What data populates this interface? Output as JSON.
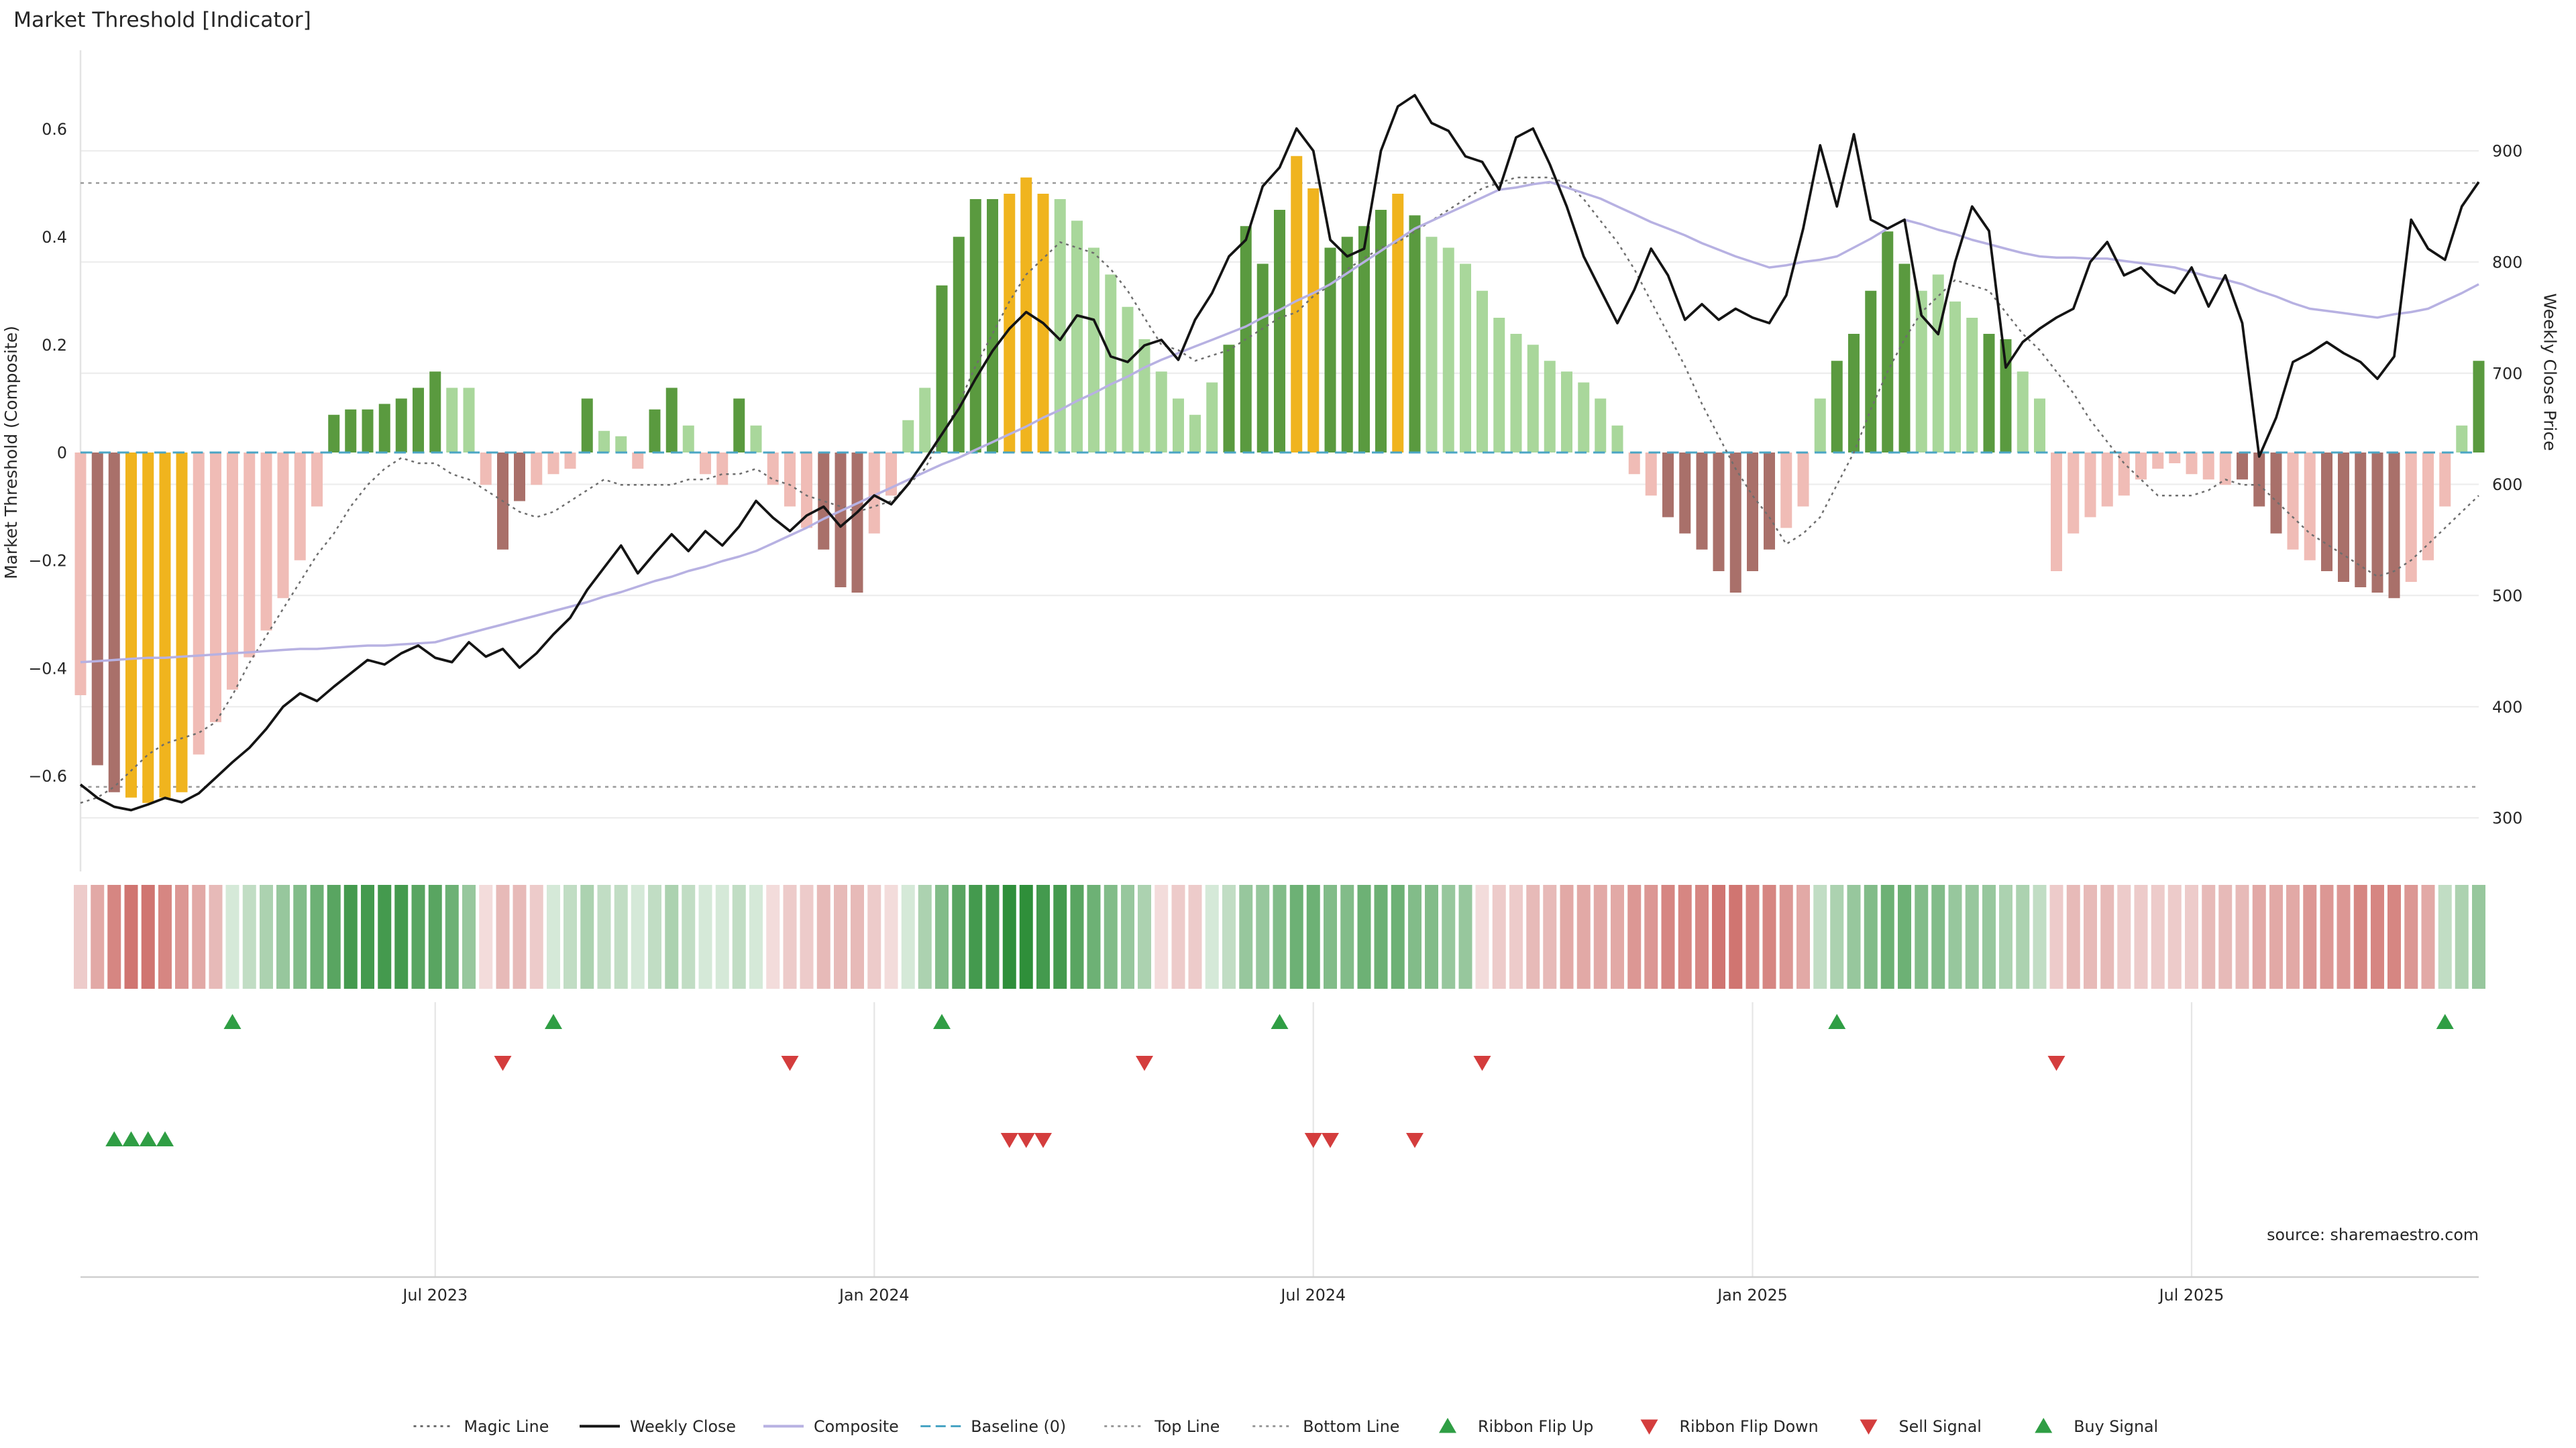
{
  "title": "Market Threshold [Indicator]",
  "source": "source: sharemaestro.com",
  "colors": {
    "dark_green": "#5a9a3f",
    "light_green": "#a9d79b",
    "yellow": "#f0b41e",
    "light_red": "#f0bcb6",
    "dark_red": "#a9706a",
    "weekly_close": "#141414",
    "composite_line": "#b7b1e2",
    "magic_line": "#6e6e6e",
    "baseline": "#4aa5c4",
    "top_bottom_line": "#9a9a9a",
    "signal_green": "#2f9e44",
    "signal_red": "#d43d3d",
    "ribbon_green": "#2f8f3a",
    "ribbon_red": "#c4524d"
  },
  "legend": [
    {
      "label": "Magic Line",
      "marker": "dotted-line",
      "color": "#6e6e6e"
    },
    {
      "label": "Weekly Close",
      "marker": "solid-line",
      "color": "#141414"
    },
    {
      "label": "Composite",
      "marker": "solid-line",
      "color": "#b7b1e2"
    },
    {
      "label": "Baseline (0)",
      "marker": "dashed-line",
      "color": "#4aa5c4"
    },
    {
      "label": "Top Line",
      "marker": "dotted-line",
      "color": "#9a9a9a"
    },
    {
      "label": "Bottom Line",
      "marker": "dotted-line",
      "color": "#9a9a9a"
    },
    {
      "label": "Ribbon Flip Up",
      "marker": "triangle-up",
      "color": "#2f9e44"
    },
    {
      "label": "Ribbon Flip Down",
      "marker": "triangle-down",
      "color": "#d43d3d"
    },
    {
      "label": "Sell Signal",
      "marker": "triangle-down",
      "color": "#d43d3d"
    },
    {
      "label": "Buy Signal",
      "marker": "triangle-up",
      "color": "#2f9e44"
    }
  ],
  "chart_data": {
    "type": "mixed",
    "description": "Weekly market-threshold composite histogram with weekly close price, composite and magic lines, signal ribbon and buy/sell markers",
    "x_axis": {
      "unit": "week",
      "tick_labels": [
        "Jul 2023",
        "Jan 2024",
        "Jul 2024",
        "Jan 2025",
        "Jul 2025"
      ],
      "tick_week_indices": [
        21,
        47,
        73,
        99,
        125
      ]
    },
    "left_axis": {
      "label": "Market Threshold (Composite)",
      "ticks": [
        0.6,
        0.4,
        0.2,
        0,
        -0.2,
        -0.4,
        -0.6
      ],
      "tick_labels": [
        "0.6",
        "0.4",
        "0.2",
        "0",
        "−0.2",
        "−0.4",
        "−0.6"
      ]
    },
    "right_axis": {
      "label": "Weekly Close Price",
      "ticks": [
        900,
        800,
        700,
        600,
        500,
        400,
        300
      ]
    },
    "reference_lines": {
      "baseline": 0,
      "top_line": 0.5,
      "bottom_line": -0.62
    },
    "bars": {
      "name": "Market Threshold (Composite) histogram",
      "values": [
        -0.45,
        -0.58,
        -0.63,
        -0.64,
        -0.65,
        -0.64,
        -0.63,
        -0.56,
        -0.5,
        -0.44,
        -0.38,
        -0.33,
        -0.27,
        -0.2,
        -0.1,
        0.07,
        0.08,
        0.08,
        0.09,
        0.1,
        0.12,
        0.15,
        0.12,
        0.12,
        -0.06,
        -0.18,
        -0.09,
        -0.06,
        -0.04,
        -0.03,
        0.1,
        0.04,
        0.03,
        -0.03,
        0.08,
        0.12,
        0.05,
        -0.04,
        -0.06,
        0.1,
        0.05,
        -0.06,
        -0.1,
        -0.14,
        -0.18,
        -0.25,
        -0.26,
        -0.15,
        -0.08,
        0.06,
        0.12,
        0.31,
        0.4,
        0.47,
        0.47,
        0.48,
        0.51,
        0.48,
        0.47,
        0.43,
        0.38,
        0.33,
        0.27,
        0.21,
        0.15,
        0.1,
        0.07,
        0.13,
        0.2,
        0.42,
        0.35,
        0.45,
        0.55,
        0.49,
        0.38,
        0.4,
        0.42,
        0.45,
        0.48,
        0.44,
        0.4,
        0.38,
        0.35,
        0.3,
        0.25,
        0.22,
        0.2,
        0.17,
        0.15,
        0.13,
        0.1,
        0.05,
        -0.04,
        -0.08,
        -0.12,
        -0.15,
        -0.18,
        -0.22,
        -0.26,
        -0.22,
        -0.18,
        -0.14,
        -0.1,
        0.1,
        0.17,
        0.22,
        0.3,
        0.41,
        0.35,
        0.3,
        0.33,
        0.28,
        0.25,
        0.22,
        0.21,
        0.15,
        0.1,
        -0.22,
        -0.15,
        -0.12,
        -0.1,
        -0.08,
        -0.05,
        -0.03,
        -0.02,
        -0.04,
        -0.05,
        -0.06,
        -0.05,
        -0.1,
        -0.15,
        -0.18,
        -0.2,
        -0.22,
        -0.24,
        -0.25,
        -0.26,
        -0.27,
        -0.24,
        -0.2,
        -0.1,
        0.05,
        0.17
      ],
      "styles": [
        "lr",
        "dr",
        "dr",
        "y",
        "y",
        "y",
        "y",
        "lr",
        "lr",
        "lr",
        "lr",
        "lr",
        "lr",
        "lr",
        "lr",
        "dg",
        "dg",
        "dg",
        "dg",
        "dg",
        "dg",
        "dg",
        "lg",
        "lg",
        "lr",
        "dr",
        "dr",
        "lr",
        "lr",
        "lr",
        "dg",
        "lg",
        "lg",
        "lr",
        "dg",
        "dg",
        "lg",
        "lr",
        "lr",
        "dg",
        "lg",
        "lr",
        "lr",
        "lr",
        "dr",
        "dr",
        "dr",
        "lr",
        "lr",
        "lg",
        "lg",
        "dg",
        "dg",
        "dg",
        "dg",
        "y",
        "y",
        "y",
        "lg",
        "lg",
        "lg",
        "lg",
        "lg",
        "lg",
        "lg",
        "lg",
        "lg",
        "lg",
        "dg",
        "dg",
        "dg",
        "dg",
        "y",
        "y",
        "dg",
        "dg",
        "dg",
        "dg",
        "y",
        "dg",
        "lg",
        "lg",
        "lg",
        "lg",
        "lg",
        "lg",
        "lg",
        "lg",
        "lg",
        "lg",
        "lg",
        "lg",
        "lr",
        "lr",
        "dr",
        "dr",
        "dr",
        "dr",
        "dr",
        "dr",
        "dr",
        "lr",
        "lr",
        "lg",
        "dg",
        "dg",
        "dg",
        "dg",
        "dg",
        "lg",
        "lg",
        "lg",
        "lg",
        "dg",
        "dg",
        "lg",
        "lg",
        "lr",
        "lr",
        "lr",
        "lr",
        "lr",
        "lr",
        "lr",
        "lr",
        "lr",
        "lr",
        "lr",
        "dr",
        "dr",
        "dr",
        "lr",
        "lr",
        "dr",
        "dr",
        "dr",
        "dr",
        "dr",
        "lr",
        "lr",
        "lr",
        "lg",
        "dg"
      ],
      "style_legend": {
        "dg": "dark green",
        "lg": "light green",
        "y": "yellow highlight",
        "lr": "light red",
        "dr": "dark red"
      }
    },
    "lines": {
      "weekly_close": [
        330,
        318,
        310,
        307,
        312,
        318,
        314,
        322,
        336,
        350,
        363,
        380,
        400,
        412,
        405,
        418,
        430,
        442,
        438,
        448,
        455,
        444,
        440,
        458,
        445,
        452,
        435,
        448,
        465,
        480,
        505,
        525,
        545,
        520,
        538,
        555,
        540,
        558,
        545,
        562,
        585,
        570,
        558,
        572,
        580,
        562,
        575,
        590,
        582,
        600,
        622,
        645,
        668,
        695,
        720,
        740,
        755,
        745,
        730,
        752,
        748,
        715,
        710,
        725,
        730,
        712,
        748,
        772,
        805,
        820,
        868,
        885,
        920,
        900,
        820,
        805,
        812,
        900,
        940,
        950,
        925,
        918,
        895,
        890,
        865,
        912,
        920,
        888,
        850,
        805,
        775,
        745,
        775,
        812,
        788,
        748,
        762,
        748,
        758,
        750,
        745,
        770,
        830,
        905,
        850,
        915,
        838,
        830,
        838,
        752,
        735,
        800,
        850,
        828,
        705,
        728,
        740,
        750,
        758,
        800,
        818,
        788,
        795,
        780,
        772,
        795,
        760,
        788,
        745,
        625,
        660,
        710,
        718,
        728,
        718,
        710,
        695,
        715,
        838,
        812,
        802,
        850,
        872
      ],
      "composite": [
        440,
        441,
        442,
        443,
        444,
        444,
        445,
        446,
        447,
        448,
        449,
        450,
        451,
        452,
        452,
        453,
        454,
        455,
        455,
        456,
        457,
        458,
        462,
        466,
        470,
        474,
        478,
        482,
        486,
        490,
        494,
        499,
        503,
        508,
        513,
        517,
        522,
        526,
        531,
        535,
        540,
        547,
        554,
        561,
        569,
        576,
        583,
        590,
        597,
        604,
        611,
        618,
        624,
        631,
        638,
        645,
        652,
        660,
        667,
        675,
        682,
        690,
        697,
        705,
        712,
        718,
        724,
        730,
        736,
        742,
        750,
        757,
        765,
        772,
        780,
        790,
        800,
        810,
        820,
        830,
        837,
        844,
        851,
        858,
        865,
        867,
        870,
        872,
        867,
        862,
        857,
        850,
        843,
        836,
        830,
        824,
        817,
        811,
        805,
        800,
        795,
        797,
        800,
        802,
        805,
        813,
        821,
        830,
        838,
        834,
        829,
        825,
        820,
        816,
        812,
        808,
        805,
        804,
        804,
        803,
        803,
        801,
        799,
        797,
        795,
        791,
        787,
        784,
        780,
        774,
        769,
        763,
        758,
        756,
        754,
        752,
        750,
        753,
        755,
        758,
        765,
        772,
        780
      ],
      "magic_line": [
        -0.65,
        -0.64,
        -0.62,
        -0.59,
        -0.56,
        -0.54,
        -0.53,
        -0.52,
        -0.5,
        -0.45,
        -0.39,
        -0.34,
        -0.29,
        -0.24,
        -0.19,
        -0.15,
        -0.1,
        -0.06,
        -0.03,
        -0.01,
        -0.02,
        -0.02,
        -0.04,
        -0.05,
        -0.07,
        -0.09,
        -0.11,
        -0.12,
        -0.11,
        -0.09,
        -0.07,
        -0.05,
        -0.06,
        -0.06,
        -0.06,
        -0.06,
        -0.05,
        -0.05,
        -0.04,
        -0.04,
        -0.03,
        -0.05,
        -0.06,
        -0.08,
        -0.09,
        -0.1,
        -0.11,
        -0.1,
        -0.09,
        -0.06,
        -0.03,
        0.03,
        0.09,
        0.16,
        0.22,
        0.28,
        0.33,
        0.36,
        0.39,
        0.38,
        0.37,
        0.34,
        0.3,
        0.25,
        0.2,
        0.19,
        0.17,
        0.18,
        0.19,
        0.21,
        0.23,
        0.25,
        0.26,
        0.29,
        0.31,
        0.34,
        0.36,
        0.38,
        0.39,
        0.41,
        0.43,
        0.45,
        0.47,
        0.49,
        0.5,
        0.51,
        0.51,
        0.51,
        0.5,
        0.47,
        0.43,
        0.39,
        0.34,
        0.28,
        0.22,
        0.16,
        0.09,
        0.03,
        -0.03,
        -0.08,
        -0.12,
        -0.17,
        -0.15,
        -0.12,
        -0.06,
        0.0,
        0.08,
        0.15,
        0.21,
        0.26,
        0.29,
        0.32,
        0.31,
        0.3,
        0.26,
        0.22,
        0.19,
        0.15,
        0.11,
        0.06,
        0.02,
        -0.02,
        -0.05,
        -0.08,
        -0.08,
        -0.08,
        -0.07,
        -0.05,
        -0.06,
        -0.06,
        -0.09,
        -0.12,
        -0.15,
        -0.17,
        -0.19,
        -0.21,
        -0.23,
        -0.22,
        -0.2,
        -0.17,
        -0.14,
        -0.11,
        -0.08
      ]
    },
    "ribbon": [
      -0.3,
      -0.5,
      -0.7,
      -0.8,
      -0.8,
      -0.7,
      -0.6,
      -0.5,
      -0.4,
      0.2,
      0.3,
      0.4,
      0.5,
      0.6,
      0.7,
      0.8,
      0.9,
      0.9,
      0.9,
      0.9,
      0.8,
      0.8,
      0.7,
      0.5,
      -0.2,
      -0.4,
      -0.4,
      -0.3,
      0.2,
      0.3,
      0.4,
      0.3,
      0.3,
      0.2,
      0.3,
      0.4,
      0.3,
      0.2,
      0.2,
      0.3,
      0.2,
      -0.2,
      -0.3,
      -0.3,
      -0.4,
      -0.4,
      -0.4,
      -0.3,
      -0.2,
      0.2,
      0.4,
      0.6,
      0.8,
      0.9,
      0.9,
      1.0,
      1.0,
      0.9,
      0.9,
      0.8,
      0.7,
      0.6,
      0.5,
      0.4,
      -0.2,
      -0.3,
      -0.3,
      0.2,
      0.3,
      0.5,
      0.5,
      0.6,
      0.7,
      0.7,
      0.6,
      0.6,
      0.7,
      0.7,
      0.7,
      0.6,
      0.6,
      0.5,
      0.5,
      -0.2,
      -0.3,
      -0.3,
      -0.4,
      -0.4,
      -0.5,
      -0.5,
      -0.5,
      -0.5,
      -0.6,
      -0.6,
      -0.7,
      -0.7,
      -0.7,
      -0.8,
      -0.8,
      -0.7,
      -0.7,
      -0.6,
      -0.5,
      0.3,
      0.4,
      0.5,
      0.6,
      0.7,
      0.7,
      0.6,
      0.6,
      0.5,
      0.5,
      0.5,
      0.4,
      0.4,
      0.3,
      -0.3,
      -0.4,
      -0.4,
      -0.4,
      -0.3,
      -0.3,
      -0.3,
      -0.3,
      -0.3,
      -0.4,
      -0.4,
      -0.4,
      -0.5,
      -0.5,
      -0.5,
      -0.6,
      -0.6,
      -0.6,
      -0.7,
      -0.7,
      -0.7,
      -0.6,
      -0.5,
      0.3,
      0.4,
      0.5
    ],
    "signals": {
      "ribbon_flip_up_weeks": [
        9,
        28,
        51,
        71,
        104,
        140
      ],
      "ribbon_flip_down_weeks": [
        25,
        42,
        63,
        83,
        117
      ],
      "sell_signal_weeks": [
        55,
        56,
        57,
        73,
        74,
        79
      ],
      "buy_signal_weeks": [
        2,
        3,
        4,
        5
      ]
    }
  }
}
